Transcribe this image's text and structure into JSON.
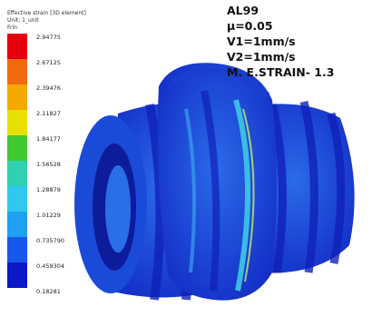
{
  "legend": {
    "title": "Effective strain [3D element]",
    "unit": "Unit: 1_unit",
    "extra": "Frin",
    "labels": [
      "2.94775",
      "2.67125",
      "2.39476",
      "2.11827",
      "1.84177",
      "1.56528",
      "1.28879",
      "1.01229",
      "0.735790",
      "0.459304",
      "0.18281"
    ]
  },
  "annotation": {
    "lines": [
      "AL99",
      "μ=0.05",
      "V1=1mm/s",
      "V2=1mm/s",
      "M. E.STRAIN- 1.3"
    ]
  }
}
